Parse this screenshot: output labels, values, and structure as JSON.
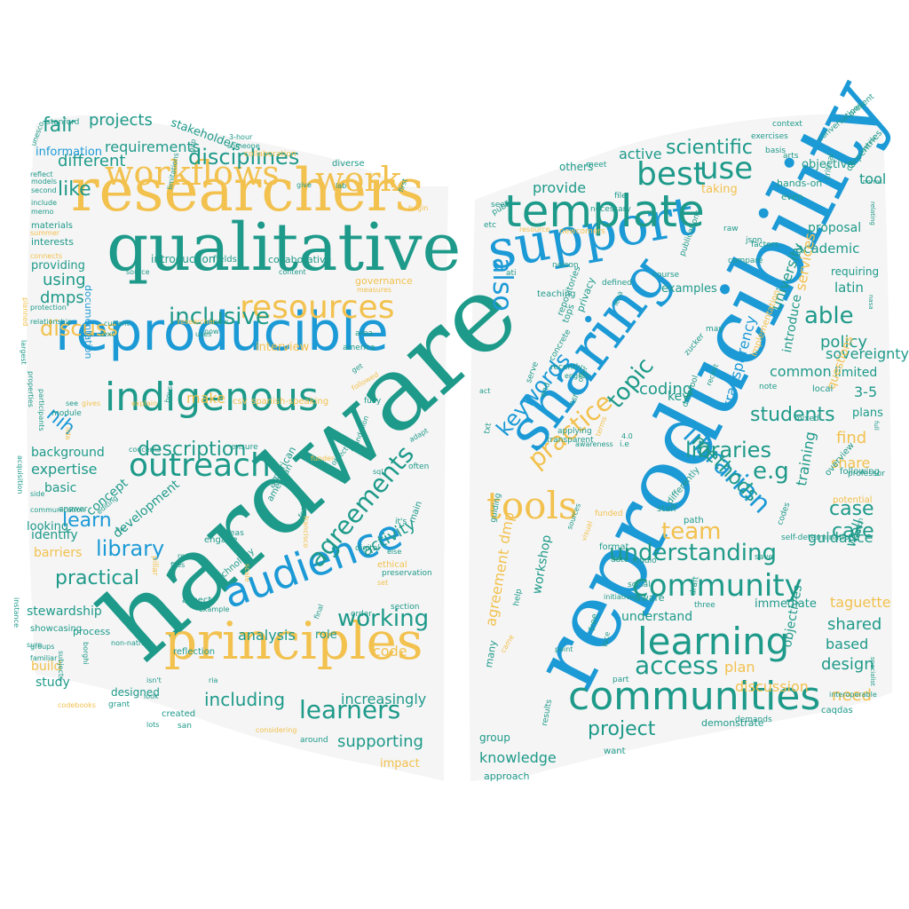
{
  "colors": {
    "teal": "#1e9a8a",
    "blue": "#1c9ad6",
    "gold": "#f2c14e",
    "background": "#ffffff",
    "page": "#f5f5f5"
  },
  "left_page": {
    "words": [
      "hardware",
      "qualitative",
      "researchers",
      "reproducible",
      "principles",
      "indigenous",
      "workflows",
      "audience",
      "resources",
      "outreach",
      "work",
      "discuss",
      "inclusive",
      "agreements",
      "disciplines",
      "working",
      "learners",
      "description",
      "library",
      "learn",
      "practical",
      "including",
      "supporting",
      "fair",
      "like",
      "projects",
      "different",
      "requirements",
      "information",
      "stakeholders",
      "interview",
      "analysis",
      "increasingly",
      "activity",
      "code",
      "nih",
      "make",
      "using",
      "dmps",
      "background",
      "expertise",
      "basic",
      "concept",
      "development",
      "identify",
      "stewardship",
      "study",
      "build",
      "designed",
      "role",
      "impact",
      "collaborative",
      "governance",
      "introduction",
      "providing",
      "fields",
      "documentation",
      "spanish-speaking",
      "csv",
      "american",
      "ethical",
      "reflection",
      "technology",
      "process",
      "grant",
      "created",
      "around",
      "considering",
      "codebooks",
      "showcasing",
      "instance",
      "side",
      "interests",
      "materials",
      "memo",
      "include",
      "models",
      "second",
      "stanford",
      "unesco",
      "reflect",
      "protection",
      "relationship",
      "planned",
      "largest",
      "properties",
      "participants",
      "module",
      "ilda",
      "gives",
      "explain",
      "house",
      "concerns",
      "ensure",
      "funder",
      "foundation",
      "sql",
      "often",
      "main",
      "digital",
      "preservation",
      "section",
      "order",
      "final",
      "ria",
      "san",
      "lots",
      "isn't",
      "look",
      "real",
      "aspects",
      "areas",
      "engage",
      "follow",
      "american",
      "know",
      "uses",
      "now",
      "current",
      "text",
      "answer",
      "communication",
      "barriers",
      "looking",
      "familiar",
      "groups",
      "sure",
      "subjects",
      "acquisition",
      "summer",
      "connects",
      "source",
      "content",
      "measures",
      "begin",
      "lab",
      "give",
      "diverse",
      "first",
      "gap",
      "limitations",
      "3-hour",
      "someone",
      "collaboration",
      "researcher",
      "area",
      "america",
      "get",
      "fully",
      "adapt",
      "else",
      "it's",
      "francisco",
      "files",
      "pillar",
      "scale",
      "set",
      "example",
      "borghi",
      "non-native",
      "editing",
      "object",
      "nrc",
      "followed",
      "see"
    ]
  },
  "right_page": {
    "words": [
      "reproducibility",
      "sharing",
      "support",
      "template",
      "communities",
      "learning",
      "community",
      "tools",
      "librarian",
      "libraries",
      "also",
      "best",
      "use",
      "practice",
      "team",
      "understanding",
      "access",
      "keywords",
      "project",
      "students",
      "methods",
      "topic",
      "e.g",
      "case",
      "care",
      "find",
      "need",
      "taguette",
      "shared",
      "based",
      "design",
      "plan",
      "able",
      "policy",
      "coding",
      "scientific",
      "tool",
      "active",
      "provide",
      "proposal",
      "academic",
      "university",
      "latin",
      "transparency",
      "training",
      "guidance",
      "services",
      "introduce",
      "sovereignty",
      "limited",
      "3-5",
      "share",
      "following",
      "well",
      "objectives",
      "discussion",
      "understand",
      "workshop",
      "dmp",
      "agreement",
      "knowledge",
      "group",
      "approach",
      "demonstrate",
      "want",
      "privacy",
      "tops",
      "repositories",
      "teaching",
      "examples",
      "requiring",
      "common",
      "objective",
      "carpentries",
      "conversations",
      "exercises",
      "context",
      "present",
      "arts",
      "basis",
      "even",
      "critical",
      "hands-on",
      "meet",
      "others",
      "taking",
      "json",
      "raw",
      "compare",
      "factors",
      "publications",
      "course",
      "defined",
      "file",
      "resource",
      "necessary",
      "newcomers",
      "public",
      "seek",
      "etc",
      "ati",
      "lena",
      "may",
      "implementation",
      "questions",
      "local",
      "plans",
      "mixed",
      "note",
      "key",
      "zucker",
      "recent",
      "dmptool",
      "staff",
      "differently",
      "overview",
      "codes",
      "potential",
      "funded",
      "visual",
      "sources",
      "initiatives",
      "aware",
      "three",
      "draft",
      "immediate",
      "match",
      "interoperable",
      "demands",
      "caqdas",
      "results",
      "free",
      "part",
      "face",
      "point",
      "studio",
      "social",
      "save",
      "self-determination",
      "path",
      "date",
      "format",
      "help",
      "came",
      "many",
      "guiding",
      "transparent",
      "applying",
      "txt",
      "end",
      "serve",
      "awareness",
      "concrete",
      "recently",
      "terms",
      "nelson",
      "act",
      "english",
      "offer",
      "nsf",
      "i.e",
      "4.0",
      "relating",
      "norms",
      "full",
      "nasa",
      "senior",
      "professor",
      "specialist",
      "laboratory",
      "actively",
      "cover",
      "olds"
    ]
  }
}
